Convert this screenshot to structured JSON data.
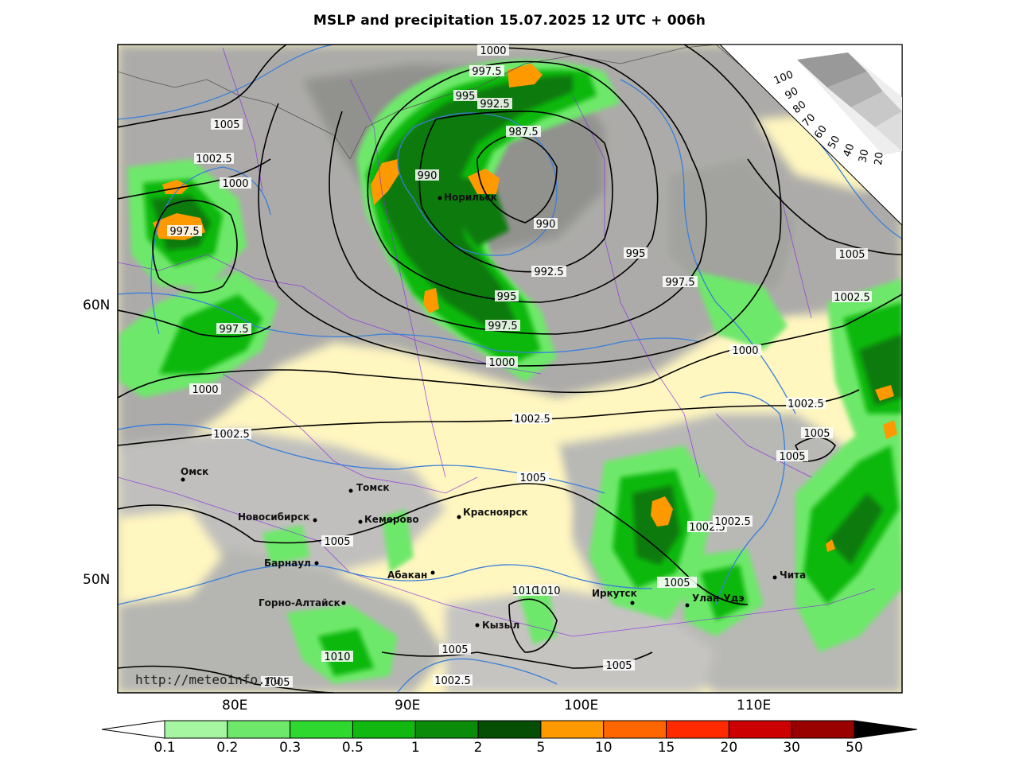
{
  "title": "MSLP and precipitation 15.07.2025 12 UTC + 006h",
  "watermark": "http://meteoinfo.ru",
  "lat_labels": [
    "60N",
    "50N"
  ],
  "lon_labels": [
    "80E",
    "90E",
    "100E",
    "110E"
  ],
  "cities": [
    {
      "name": "Норильск",
      "key": "norilsk"
    },
    {
      "name": "Омск",
      "key": "omsk"
    },
    {
      "name": "Томск",
      "key": "tomsk"
    },
    {
      "name": "Новосибирск",
      "key": "novosibirsk"
    },
    {
      "name": "Кемерово",
      "key": "kemerovo"
    },
    {
      "name": "Красноярск",
      "key": "krasnoyarsk"
    },
    {
      "name": "Барнаул",
      "key": "barnaul"
    },
    {
      "name": "Абакан",
      "key": "abakan"
    },
    {
      "name": "Горно-Алтайск",
      "key": "gorno-altaysk"
    },
    {
      "name": "Кызыл",
      "key": "kyzyl"
    },
    {
      "name": "Иркутск",
      "key": "irkutsk"
    },
    {
      "name": "Улан-Удэ",
      "key": "ulan-ude"
    },
    {
      "name": "Чита",
      "key": "chita"
    }
  ],
  "isobar_labels": [
    "1000",
    "997.5",
    "995",
    "992.5",
    "987.5",
    "990",
    "990",
    "992.5",
    "995",
    "997.5",
    "995",
    "997.5",
    "1000",
    "1000",
    "1005",
    "1002.5",
    "1000",
    "997.5",
    "1000",
    "997.5",
    "1005",
    "1002.5",
    "1000",
    "1002.5",
    "1002.5",
    "1005",
    "1005",
    "1005",
    "1002.5",
    "1002.5",
    "1005",
    "1010",
    "1010",
    "1002.5",
    "1005",
    "1005",
    "1002.5",
    "1005"
  ],
  "inset_scale": [
    "100",
    "90",
    "80",
    "70",
    "60",
    "50",
    "40",
    "30",
    "20"
  ],
  "colorbar": {
    "ticks": [
      "0.1",
      "0.2",
      "0.3",
      "0.5",
      "1",
      "2",
      "5",
      "10",
      "15",
      "20",
      "30",
      "50"
    ],
    "colors": [
      "#a6f5a0",
      "#6ee86a",
      "#2ed82e",
      "#10b810",
      "#0a8c0a",
      "#064d06",
      "#ff9900",
      "#ff6600",
      "#ff2a00",
      "#cc0000",
      "#990000"
    ],
    "under_color": "#ffffff",
    "over_color": "#000000"
  },
  "colors": {
    "land_background": "#fff6c0",
    "cloud_gray": "#9a9a9a",
    "isobar": "#000000",
    "isotherm": "#3a7fd9",
    "border": "#8a2be2"
  }
}
